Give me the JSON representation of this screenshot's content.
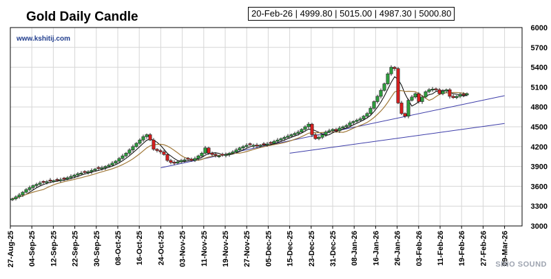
{
  "header": {
    "title": "Gold Daily Candle",
    "website": "www.kshitij.com",
    "ohlc_readout": "20-Feb-26 | 4999.80 | 5015.00 | 4987.30 | 5000.80"
  },
  "watermark": "SINO SOUND",
  "colors": {
    "up": "#2e9e3e",
    "down": "#d41f1f",
    "grid": "#d6d6d6",
    "trendline": "#3b3ba8",
    "ma_short": "#000000",
    "ma_long": "#a07838"
  },
  "chart_data": {
    "type": "candlestick",
    "x_ticks": [
      "27-Aug-25",
      "04-Sep-25",
      "12-Sep-25",
      "22-Sep-25",
      "30-Sep-25",
      "08-Oct-25",
      "16-Oct-25",
      "24-Oct-25",
      "03-Nov-25",
      "11-Nov-25",
      "19-Nov-25",
      "27-Nov-25",
      "05-Dec-25",
      "15-Dec-25",
      "23-Dec-25",
      "31-Dec-25",
      "08-Jan-26",
      "16-Jan-26",
      "26-Jan-26",
      "03-Feb-26",
      "11-Feb-26",
      "19-Feb-26",
      "27-Feb-26",
      "09-Mar-26"
    ],
    "y_ticks": [
      3000,
      3300,
      3600,
      3900,
      4200,
      4500,
      4800,
      5100,
      5400,
      5700,
      6000
    ],
    "ylim": [
      3000,
      6000
    ],
    "y_axis_side": "right",
    "grid": true,
    "candle_closes": [
      3410,
      3440,
      3470,
      3510,
      3550,
      3580,
      3610,
      3630,
      3650,
      3660,
      3670,
      3680,
      3685,
      3690,
      3700,
      3710,
      3730,
      3750,
      3770,
      3790,
      3800,
      3810,
      3820,
      3840,
      3860,
      3870,
      3880,
      3900,
      3920,
      3950,
      3980,
      4020,
      4060,
      4100,
      4150,
      4200,
      4250,
      4300,
      4350,
      4380,
      4300,
      4160,
      4140,
      4120,
      4080,
      3990,
      3960,
      3950,
      3970,
      3990,
      4000,
      4010,
      3990,
      4020,
      4060,
      4100,
      4180,
      4100,
      4080,
      4070,
      4060,
      4070,
      4080,
      4100,
      4120,
      4150,
      4180,
      4200,
      4220,
      4230,
      4220,
      4210,
      4220,
      4230,
      4240,
      4250,
      4280,
      4300,
      4320,
      4340,
      4360,
      4380,
      4400,
      4420,
      4460,
      4500,
      4540,
      4380,
      4320,
      4340,
      4380,
      4420,
      4440,
      4460,
      4440,
      4480,
      4500,
      4520,
      4560,
      4580,
      4600,
      4620,
      4660,
      4700,
      4780,
      4880,
      4960,
      5050,
      5150,
      5300,
      5400,
      5380,
      4860,
      4700,
      4660,
      4900,
      4950,
      5000,
      4880,
      4950,
      5030,
      5060,
      5070,
      5060,
      5000,
      5040,
      5060,
      4960,
      4940,
      4960,
      4990,
      4980,
      5000.8
    ],
    "trendlines": [
      {
        "from": [
          "24-Oct-25",
          3880
        ],
        "to": [
          "09-Mar-26",
          4970
        ]
      },
      {
        "from": [
          "15-Dec-25",
          4100
        ],
        "to": [
          "09-Mar-26",
          4550
        ]
      }
    ],
    "moving_averages": [
      "short",
      "long"
    ]
  }
}
